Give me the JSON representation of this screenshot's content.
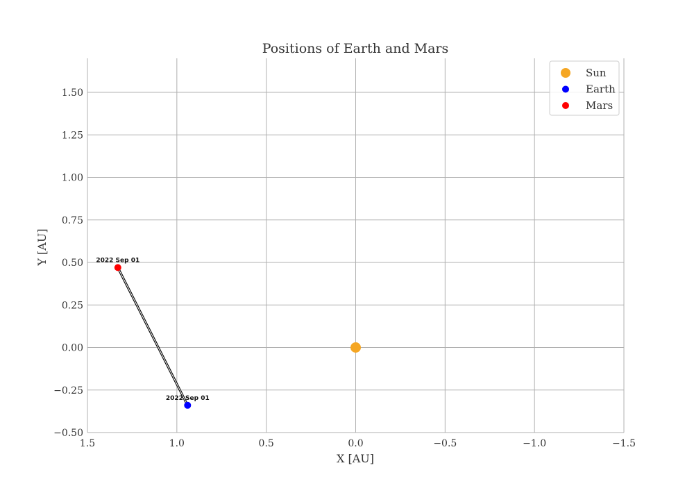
{
  "chart_data": {
    "type": "scatter",
    "title": "Positions of Earth and Mars",
    "xlabel": "X [AU]",
    "ylabel": "Y [AU]",
    "xlim": [
      1.5,
      -1.5
    ],
    "ylim": [
      -0.5,
      1.7
    ],
    "x_ticks": [
      1.5,
      1.0,
      0.5,
      0.0,
      -0.5,
      -1.0,
      -1.5
    ],
    "x_tick_labels": [
      "1.5",
      "1.0",
      "0.5",
      "0.0",
      "−0.5",
      "−1.0",
      "−1.5"
    ],
    "y_ticks": [
      -0.5,
      -0.25,
      0.0,
      0.25,
      0.5,
      0.75,
      1.0,
      1.25,
      1.5
    ],
    "y_tick_labels": [
      "−0.50",
      "−0.25",
      "0.00",
      "0.25",
      "0.50",
      "0.75",
      "1.00",
      "1.25",
      "1.50"
    ],
    "grid": true,
    "legend_position": "top-right",
    "series": [
      {
        "name": "Sun",
        "color": "#f5a623",
        "x": [
          0.0
        ],
        "y": [
          0.0
        ]
      },
      {
        "name": "Earth",
        "color": "#0000ff",
        "x": [
          0.94
        ],
        "y": [
          -0.34
        ]
      },
      {
        "name": "Mars",
        "color": "#ff0000",
        "x": [
          1.33
        ],
        "y": [
          0.47
        ]
      }
    ],
    "annotations": [
      {
        "text": "2022 Sep 01",
        "x": 1.33,
        "y": 0.47
      },
      {
        "text": "2022 Sep 01",
        "x": 0.94,
        "y": -0.34
      }
    ],
    "connector": {
      "from": [
        0.94,
        -0.34
      ],
      "to": [
        1.33,
        0.47
      ],
      "color": "#000000"
    }
  }
}
